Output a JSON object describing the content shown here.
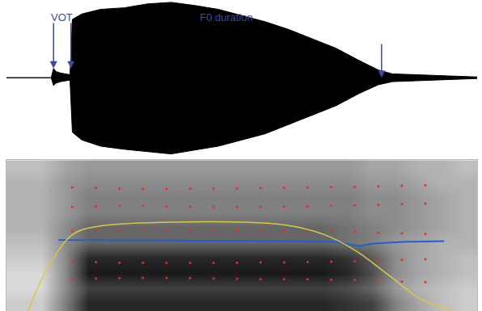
{
  "chart_data": {
    "type": "spectrogram",
    "tick_labels": false,
    "grid": false,
    "xlim": [
      0,
      100
    ],
    "waveform": {
      "ylim": [
        -1,
        1
      ],
      "color": "#000000",
      "x": [
        0,
        9.5,
        10,
        10.5,
        11.5,
        13.5,
        14,
        16,
        20,
        25,
        30,
        35,
        40,
        45,
        50,
        55,
        60,
        65,
        70,
        75,
        79,
        82,
        90,
        100
      ],
      "upper": [
        0,
        0,
        0.12,
        0.08,
        0.06,
        0.04,
        0.75,
        0.82,
        0.88,
        0.9,
        0.95,
        0.97,
        0.93,
        0.88,
        0.8,
        0.72,
        0.62,
        0.5,
        0.38,
        0.22,
        0.1,
        0.05,
        0.03,
        0.01
      ],
      "lower": [
        0,
        0,
        -0.1,
        -0.07,
        -0.05,
        -0.03,
        -0.7,
        -0.8,
        -0.88,
        -0.92,
        -0.95,
        -0.98,
        -0.93,
        -0.88,
        -0.8,
        -0.72,
        -0.6,
        -0.48,
        -0.36,
        -0.2,
        -0.09,
        -0.05,
        -0.03,
        -0.01
      ]
    },
    "intervals": [
      {
        "label": "VOT",
        "start": 10,
        "end": 13.7
      },
      {
        "label": "F0 duration",
        "start": 13.7,
        "end": 79.7
      }
    ],
    "interval_color": "#3b4a9e",
    "spectrogram": {
      "ylim": [
        0,
        5000
      ],
      "zlim": [
        0,
        1
      ],
      "time_bins": [
        0,
        5,
        10,
        15,
        20,
        25,
        30,
        35,
        40,
        45,
        50,
        55,
        60,
        65,
        70,
        75,
        80,
        85,
        90,
        95,
        100
      ],
      "freq_bins": [
        0,
        500,
        1000,
        1500,
        2000,
        2500,
        3000,
        3500,
        4000,
        4500,
        5000
      ],
      "z": [
        [
          0.2,
          0.2,
          0.5,
          0.85,
          0.85,
          0.85,
          0.85,
          0.85,
          0.85,
          0.85,
          0.85,
          0.85,
          0.85,
          0.85,
          0.8,
          0.75,
          0.5,
          0.35,
          0.25,
          0.2
        ],
        [
          0.15,
          0.15,
          0.45,
          0.75,
          0.75,
          0.75,
          0.75,
          0.75,
          0.75,
          0.75,
          0.75,
          0.75,
          0.75,
          0.75,
          0.7,
          0.6,
          0.4,
          0.3,
          0.25,
          0.2
        ],
        [
          0.15,
          0.15,
          0.45,
          0.9,
          0.9,
          0.9,
          0.9,
          0.9,
          0.9,
          0.9,
          0.9,
          0.9,
          0.9,
          0.9,
          0.85,
          0.7,
          0.45,
          0.35,
          0.3,
          0.25
        ],
        [
          0.2,
          0.2,
          0.45,
          0.85,
          0.85,
          0.85,
          0.85,
          0.85,
          0.85,
          0.85,
          0.85,
          0.85,
          0.85,
          0.85,
          0.8,
          0.65,
          0.45,
          0.35,
          0.3,
          0.25
        ],
        [
          0.25,
          0.25,
          0.45,
          0.6,
          0.6,
          0.6,
          0.6,
          0.6,
          0.6,
          0.6,
          0.6,
          0.6,
          0.6,
          0.6,
          0.55,
          0.5,
          0.4,
          0.35,
          0.3,
          0.3
        ],
        [
          0.3,
          0.3,
          0.45,
          0.6,
          0.6,
          0.6,
          0.6,
          0.6,
          0.6,
          0.6,
          0.6,
          0.6,
          0.6,
          0.6,
          0.55,
          0.5,
          0.45,
          0.4,
          0.35,
          0.3
        ],
        [
          0.3,
          0.3,
          0.4,
          0.5,
          0.5,
          0.5,
          0.5,
          0.5,
          0.5,
          0.5,
          0.5,
          0.5,
          0.5,
          0.5,
          0.5,
          0.45,
          0.45,
          0.4,
          0.35,
          0.3
        ],
        [
          0.3,
          0.3,
          0.4,
          0.5,
          0.5,
          0.5,
          0.5,
          0.5,
          0.5,
          0.5,
          0.5,
          0.5,
          0.5,
          0.5,
          0.5,
          0.45,
          0.45,
          0.4,
          0.35,
          0.3
        ],
        [
          0.3,
          0.3,
          0.4,
          0.45,
          0.45,
          0.45,
          0.45,
          0.45,
          0.45,
          0.45,
          0.45,
          0.45,
          0.45,
          0.45,
          0.45,
          0.4,
          0.4,
          0.35,
          0.3,
          0.3
        ],
        [
          0.25,
          0.25,
          0.35,
          0.4,
          0.4,
          0.4,
          0.4,
          0.4,
          0.4,
          0.4,
          0.4,
          0.4,
          0.4,
          0.4,
          0.4,
          0.35,
          0.35,
          0.3,
          0.3,
          0.25
        ]
      ],
      "formants": {
        "color": "#e0302a",
        "marker": "circle",
        "x": [
          14,
          19,
          24,
          29,
          34,
          39,
          44,
          49,
          54,
          59,
          64,
          69,
          74,
          79,
          84,
          89
        ],
        "series": [
          {
            "values": [
              1050,
              1080,
              1090,
              1100,
              1100,
              1090,
              1080,
              1070,
              1060,
              1060,
              1050,
              1040,
              1030,
              1000,
              980,
              960
            ]
          },
          {
            "values": [
              1650,
              1620,
              1600,
              1600,
              1590,
              1590,
              1600,
              1600,
              1610,
              1610,
              1620,
              1630,
              1650,
              1680,
              1700,
              1720
            ]
          },
          {
            "values": [
              2650,
              2660,
              2670,
              2680,
              2680,
              2670,
              2670,
              2660,
              2660,
              2650,
              2650,
              2640,
              2620,
              2600,
              2580,
              2560
            ]
          },
          {
            "values": [
              3450,
              3470,
              3480,
              3480,
              3470,
              3460,
              3460,
              3450,
              3450,
              3460,
              3470,
              3480,
              3500,
              3520,
              3540,
              3560
            ]
          },
          {
            "values": [
              4100,
              4080,
              4060,
              4050,
              4050,
              4060,
              4060,
              4070,
              4080,
              4090,
              4100,
              4110,
              4120,
              4130,
              4150,
              4170
            ]
          }
        ]
      }
    },
    "pitch": {
      "ylim": [
        75,
        500
      ],
      "color": "#2060d0",
      "line_style": "solid",
      "x": [
        11,
        20,
        30,
        40,
        50,
        60,
        70,
        73,
        75,
        78,
        85,
        93
      ],
      "values": [
        275,
        274,
        273,
        273,
        273,
        272,
        270,
        262,
        258,
        265,
        270,
        272
      ]
    },
    "intensity": {
      "ylim": [
        50,
        100
      ],
      "color": "#d8c84a",
      "line_style": "solid",
      "x": [
        4.6,
        8.9,
        14.1,
        19.2,
        33,
        58.8,
        67.4,
        74.2,
        81.1,
        88,
        94.8
      ],
      "values": [
        50,
        64.7,
        75.4,
        78,
        79.4,
        78.6,
        75.4,
        70,
        62,
        54,
        50
      ]
    }
  }
}
